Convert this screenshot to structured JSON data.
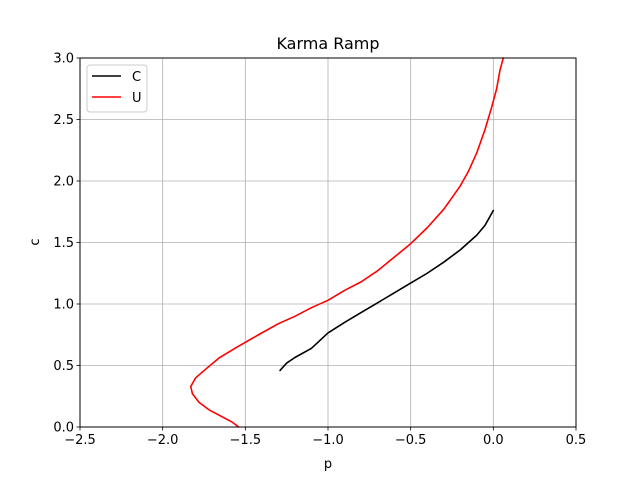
{
  "chart_data": {
    "type": "line",
    "title": "Karma Ramp",
    "xlabel": "p",
    "ylabel": "c",
    "xlim": [
      -2.5,
      0.5
    ],
    "ylim": [
      0.0,
      3.0
    ],
    "xticks": [
      -2.5,
      -2.0,
      -1.5,
      -1.0,
      -0.5,
      0.0,
      0.5
    ],
    "xtick_labels": [
      "−2.5",
      "−2.0",
      "−1.5",
      "−1.0",
      "−0.5",
      "0.0",
      "0.5"
    ],
    "yticks": [
      0.0,
      0.5,
      1.0,
      1.5,
      2.0,
      2.5,
      3.0
    ],
    "ytick_labels": [
      "0.0",
      "0.5",
      "1.0",
      "1.5",
      "2.0",
      "2.5",
      "3.0"
    ],
    "grid": true,
    "legend_position": "top-left",
    "series": [
      {
        "name": "C",
        "color": "#000000",
        "points": [
          [
            -1.29,
            0.46
          ],
          [
            -1.25,
            0.52
          ],
          [
            -1.2,
            0.565
          ],
          [
            -1.1,
            0.64
          ],
          [
            -1.0,
            0.765
          ],
          [
            -0.9,
            0.85
          ],
          [
            -0.8,
            0.93
          ],
          [
            -0.7,
            1.01
          ],
          [
            -0.6,
            1.09
          ],
          [
            -0.5,
            1.17
          ],
          [
            -0.4,
            1.25
          ],
          [
            -0.3,
            1.34
          ],
          [
            -0.2,
            1.44
          ],
          [
            -0.1,
            1.56
          ],
          [
            -0.05,
            1.64
          ],
          [
            0.0,
            1.76
          ]
        ]
      },
      {
        "name": "U",
        "color": "#ff0000",
        "points": [
          [
            -1.54,
            0.0
          ],
          [
            -1.58,
            0.04
          ],
          [
            -1.65,
            0.09
          ],
          [
            -1.72,
            0.14
          ],
          [
            -1.78,
            0.2
          ],
          [
            -1.82,
            0.27
          ],
          [
            -1.83,
            0.33
          ],
          [
            -1.8,
            0.4
          ],
          [
            -1.74,
            0.47
          ],
          [
            -1.66,
            0.56
          ],
          [
            -1.55,
            0.65
          ],
          [
            -1.42,
            0.75
          ],
          [
            -1.3,
            0.84
          ],
          [
            -1.2,
            0.9
          ],
          [
            -1.1,
            0.97
          ],
          [
            -1.0,
            1.03
          ],
          [
            -0.9,
            1.11
          ],
          [
            -0.8,
            1.18
          ],
          [
            -0.7,
            1.27
          ],
          [
            -0.6,
            1.38
          ],
          [
            -0.5,
            1.49
          ],
          [
            -0.4,
            1.62
          ],
          [
            -0.3,
            1.77
          ],
          [
            -0.2,
            1.96
          ],
          [
            -0.15,
            2.08
          ],
          [
            -0.1,
            2.23
          ],
          [
            -0.05,
            2.42
          ],
          [
            -0.01,
            2.6
          ],
          [
            0.02,
            2.75
          ],
          [
            0.04,
            2.9
          ],
          [
            0.06,
            3.0
          ]
        ]
      }
    ]
  }
}
